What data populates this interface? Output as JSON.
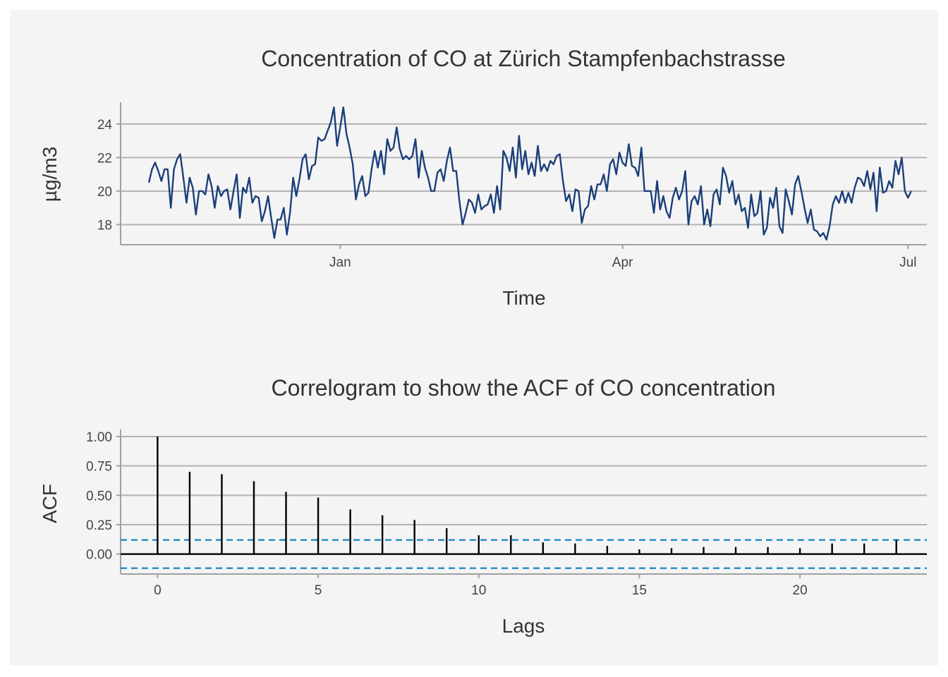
{
  "chart_data": [
    {
      "type": "line",
      "title": "Concentration of CO at Zürich Stampfenbachstrasse",
      "xlabel": "Time",
      "ylabel": "µg/m3",
      "x_ticks": [
        "Jan",
        "Apr",
        "Jul"
      ],
      "y_ticks": [
        18,
        20,
        22,
        24
      ],
      "ylim": [
        16.8,
        25.3
      ],
      "xlim": [
        "2020-10-23",
        "2021-07-07"
      ],
      "grid": true,
      "color": "#1b3f7a",
      "series": [
        {
          "x_start": "2020-11-01",
          "x_step_days": 1,
          "values": [
            20.5,
            21.3,
            21.7,
            21.2,
            20.6,
            21.3,
            21.3,
            19.0,
            21.3,
            21.9,
            22.2,
            20.8,
            19.3,
            20.8,
            20.2,
            18.6,
            20.0,
            20.0,
            19.8,
            21.0,
            20.3,
            19.0,
            20.3,
            19.7,
            20.0,
            20.1,
            18.9,
            20.0,
            21.0,
            18.4,
            20.2,
            19.9,
            20.8,
            19.3,
            19.7,
            19.6,
            18.2,
            18.8,
            19.7,
            18.4,
            17.2,
            18.3,
            18.3,
            19.0,
            17.4,
            18.7,
            20.8,
            19.7,
            20.7,
            21.9,
            22.2,
            20.7,
            21.5,
            21.6,
            23.2,
            23.0,
            23.1,
            23.6,
            24.1,
            25.0,
            22.7,
            23.8,
            25.0,
            23.4,
            22.6,
            21.6,
            19.5,
            20.4,
            20.9,
            19.7,
            19.9,
            21.3,
            22.4,
            21.4,
            22.4,
            21.0,
            23.1,
            22.4,
            22.6,
            23.8,
            22.5,
            21.9,
            22.1,
            21.9,
            22.1,
            23.1,
            20.8,
            22.4,
            21.4,
            20.8,
            20.0,
            20.0,
            21.1,
            21.3,
            20.6,
            21.8,
            22.6,
            21.2,
            21.2,
            19.4,
            18.0,
            18.7,
            19.5,
            19.3,
            18.7,
            19.8,
            18.9,
            19.1,
            19.2,
            19.8,
            18.7,
            20.3,
            18.9,
            22.4,
            22.0,
            21.2,
            22.6,
            20.8,
            23.3,
            21.3,
            22.4,
            21.0,
            21.7,
            20.9,
            22.7,
            21.2,
            21.6,
            21.2,
            21.8,
            21.6,
            22.1,
            22.2,
            20.6,
            19.4,
            19.8,
            18.8,
            20.1,
            20.0,
            18.1,
            18.9,
            19.1,
            20.3,
            19.5,
            20.4,
            20.4,
            21.0,
            20.0,
            21.6,
            21.9,
            21.0,
            22.3,
            21.7,
            21.5,
            22.8,
            21.5,
            21.4,
            20.9,
            22.6,
            20.0,
            20.0,
            20.0,
            18.7,
            20.6,
            18.9,
            19.7,
            18.8,
            18.4,
            19.6,
            20.2,
            19.5,
            20.0,
            21.2,
            18.0,
            19.4,
            19.7,
            19.2,
            20.3,
            18.0,
            18.9,
            17.9,
            19.8,
            20.1,
            19.2,
            21.4,
            20.9,
            19.9,
            20.6,
            19.2,
            19.8,
            18.8,
            19.0,
            17.8,
            19.8,
            18.5,
            18.7,
            20.0,
            17.4,
            17.8,
            19.6,
            19.0,
            20.2,
            17.9,
            17.5,
            20.1,
            19.4,
            18.6,
            20.4,
            20.9,
            20.0,
            19.0,
            18.1,
            18.9,
            17.7,
            17.6,
            17.3,
            17.5,
            17.1,
            17.9,
            19.2,
            19.7,
            19.3,
            20.0,
            19.3,
            19.9,
            19.3,
            20.2,
            20.8,
            20.7,
            20.3,
            21.2,
            20.1,
            21.1,
            18.8,
            21.4,
            19.9,
            20.0,
            20.6,
            20.2,
            21.8,
            21.0,
            22.0,
            20.0,
            19.6,
            20.0
          ]
        }
      ]
    },
    {
      "type": "bar",
      "subtype": "acf-correlogram",
      "title": "Correlogram to show the ACF of CO concentration",
      "xlabel": "Lags",
      "ylabel": "ACF",
      "x_ticks": [
        0,
        5,
        10,
        15,
        20
      ],
      "y_ticks": [
        "0.00",
        "0.25",
        "0.50",
        "0.75",
        "1.00"
      ],
      "xlim": [
        -1.15,
        23.95
      ],
      "ylim": [
        -0.17,
        1.06
      ],
      "grid": true,
      "lags": [
        0,
        1,
        2,
        3,
        4,
        5,
        6,
        7,
        8,
        9,
        10,
        11,
        12,
        13,
        14,
        15,
        16,
        17,
        18,
        19,
        20,
        21,
        22,
        23
      ],
      "values": [
        1.0,
        0.7,
        0.68,
        0.62,
        0.53,
        0.48,
        0.38,
        0.33,
        0.29,
        0.22,
        0.16,
        0.16,
        0.1,
        0.09,
        0.07,
        0.04,
        0.05,
        0.06,
        0.06,
        0.06,
        0.05,
        0.09,
        0.09,
        0.12
      ],
      "confidence_bounds": [
        0.12,
        -0.12
      ],
      "bar_color": "#000000",
      "bound_color": "#1f8ac5"
    }
  ]
}
